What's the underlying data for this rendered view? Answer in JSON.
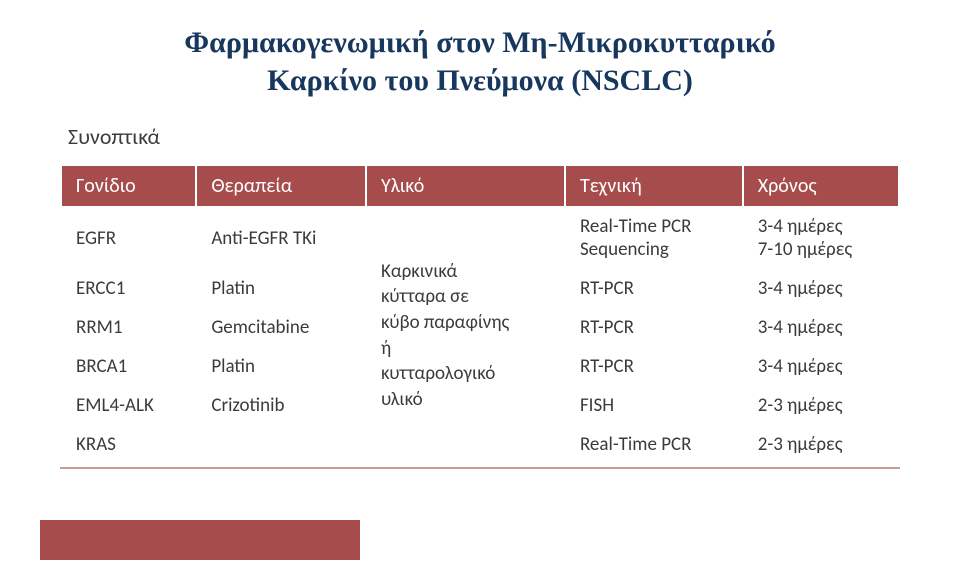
{
  "title_line1": "Φαρμακογενωμική στον Μη-Μικροκυτταρικό",
  "title_line2": "Καρκίνο του Πνεύμονα (NSCLC)",
  "subtitle": "Συνοπτικά",
  "table": {
    "header_bg": "#a74c4d",
    "header_fg": "#ffffff",
    "body_bg": "#ffffff",
    "body_fg": "#3b3b3b",
    "bottom_line_color": "#c79a9b",
    "columns": [
      "Γονίδιο",
      "Θεραπεία",
      "Υλικό",
      "Τεχνική",
      "Χρόνος"
    ],
    "material_merged_text_line1": "Καρκινικά",
    "material_merged_text_line2": "κύτταρα σε",
    "material_merged_text_line3": "κύβο παραφίνης",
    "material_merged_text_line4": "ή",
    "material_merged_text_line5": "κυτταρολογικό",
    "material_merged_text_line6": "υλικό",
    "rows": [
      {
        "gene": "EGFR",
        "therapy": "Anti-EGFR TKi",
        "technique_line1": "Real-Time PCR",
        "technique_line2": "Sequencing",
        "time_line1": "3-4 ημέρες",
        "time_line2": "7-10 ημέρες"
      },
      {
        "gene": "ERCC1",
        "therapy": "Platin",
        "technique": "RT-PCR",
        "time": "3-4 ημέρες"
      },
      {
        "gene": "RRM1",
        "therapy": "Gemcitabine",
        "technique": "RT-PCR",
        "time": "3-4 ημέρες"
      },
      {
        "gene": "BRCA1",
        "therapy": "Platin",
        "technique": "RT-PCR",
        "time": "3-4 ημέρες"
      },
      {
        "gene": "EML4-ALK",
        "therapy": "Crizotinib",
        "technique": "FISH",
        "time": "2-3 ημέρες"
      },
      {
        "gene": "KRAS",
        "therapy": "",
        "technique": "Real-Time PCR",
        "time": "2-3 ημέρες"
      }
    ]
  },
  "colors": {
    "title": "#17375e",
    "text": "#3b3b3b",
    "background": "#ffffff",
    "accent": "#a74c4d"
  },
  "fonts": {
    "title_family": "Georgia, Times New Roman, serif",
    "title_size_pt": 22,
    "body_family": "Calibri, Arial, sans-serif",
    "body_size_pt": 14
  }
}
